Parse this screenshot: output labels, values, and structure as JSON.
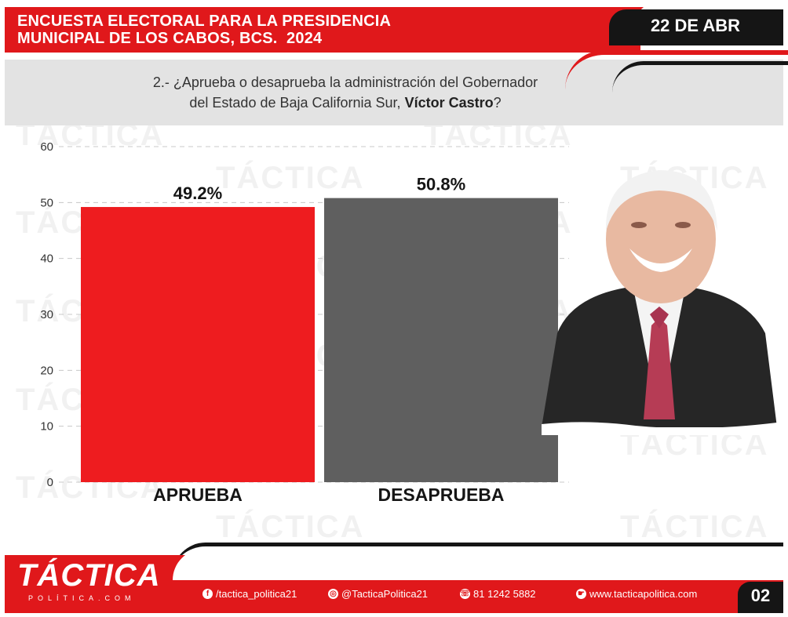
{
  "header": {
    "title_line1": "ENCUESTA ELECTORAL PARA LA PRESIDENCIA",
    "title_line2": "MUNICIPAL DE LOS CABOS, BCS.  2024",
    "date": "22 DE ABR"
  },
  "question": {
    "text_line1": "2.- ¿Aprueba o desaprueba la administración del Gobernador",
    "text_line2_prefix": "del Estado de Baja California Sur, ",
    "text_line2_bold": "Víctor Castro",
    "text_line2_suffix": "?"
  },
  "watermark": {
    "text": "TÁCTICA",
    "sub": "POLÍTICA.COM"
  },
  "chart_data": {
    "type": "bar",
    "categories": [
      "APRUEBA",
      "DESAPRUEBA"
    ],
    "values": [
      49.2,
      50.8
    ],
    "data_labels": [
      "49.2%",
      "50.8%"
    ],
    "colors": [
      "#ee1c1f",
      "#5f5f5f"
    ],
    "ylim": [
      0,
      60
    ],
    "yticks": [
      0,
      10,
      20,
      30,
      40,
      50,
      60
    ],
    "grid": true,
    "title": "",
    "xlabel": "",
    "ylabel": ""
  },
  "footer": {
    "logo": "TÁCTICA",
    "logo_sub": "POLÍTICA.COM",
    "facebook": "/tactica_politica21",
    "instagram": "@TacticaPolitica21",
    "whatsapp": "81 1242 5882",
    "website": "www.tacticapolitica.com",
    "page": "02"
  },
  "colors": {
    "brand_red": "#e0181b",
    "dark": "#151515",
    "band_grey": "#e3e3e3"
  }
}
